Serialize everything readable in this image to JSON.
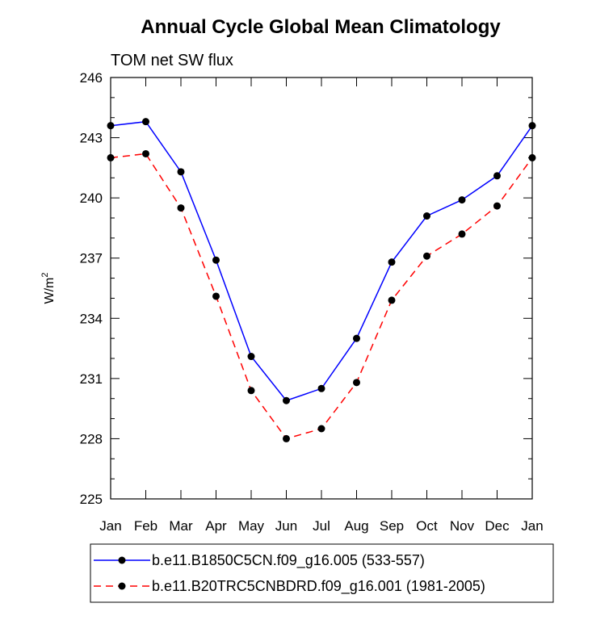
{
  "chart_data": {
    "type": "line",
    "title": "Annual Cycle Global Mean Climatology",
    "subtitle": "TOM net SW flux",
    "ylabel_base": "W/m",
    "ylabel_sup": "2",
    "xlabel": "",
    "categories": [
      "Jan",
      "Feb",
      "Mar",
      "Apr",
      "May",
      "Jun",
      "Jul",
      "Aug",
      "Sep",
      "Oct",
      "Nov",
      "Dec",
      "Jan"
    ],
    "ylim": [
      225,
      246
    ],
    "yticks": [
      "225",
      "228",
      "231",
      "234",
      "237",
      "240",
      "243",
      "246"
    ],
    "grid": false,
    "legend_position": "bottom",
    "series": [
      {
        "name": "b.e11.B1850C5CN.f09_g16.005 (533-557)",
        "color": "#0000ff",
        "dash": "solid",
        "marker": "filled-circle",
        "values": [
          243.6,
          243.8,
          241.3,
          236.9,
          232.1,
          229.9,
          230.5,
          233.0,
          236.8,
          239.1,
          239.9,
          241.1,
          243.6
        ]
      },
      {
        "name": "b.e11.B20TRC5CNBDRD.f09_g16.001 (1981-2005)",
        "color": "#ff0000",
        "dash": "dashed",
        "marker": "filled-circle",
        "values": [
          242.0,
          242.2,
          239.5,
          235.1,
          230.4,
          228.0,
          228.5,
          230.8,
          234.9,
          237.1,
          238.2,
          239.6,
          242.0
        ]
      }
    ]
  }
}
